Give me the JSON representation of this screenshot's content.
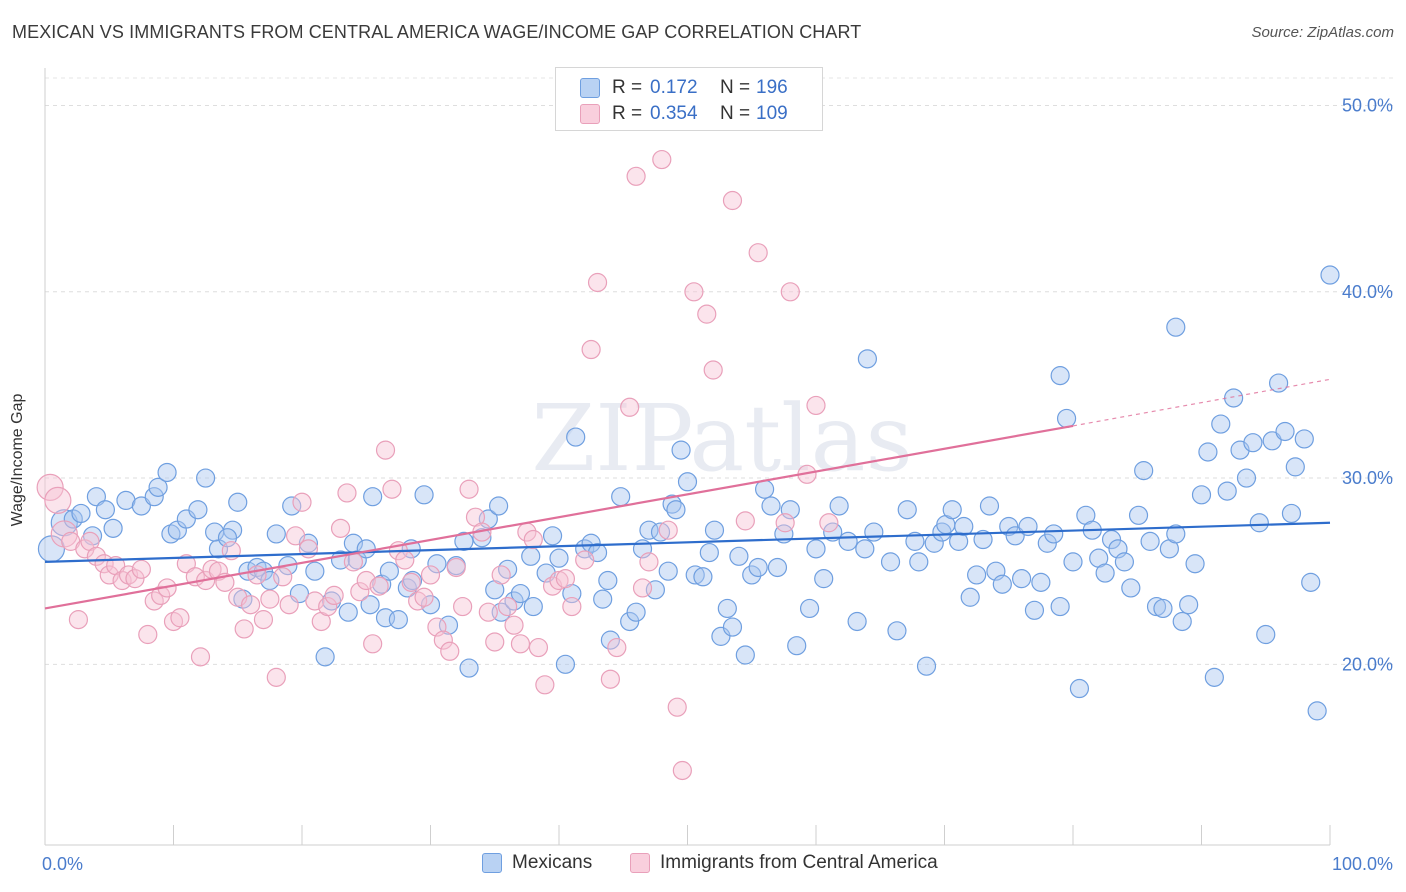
{
  "chart_data": {
    "type": "scatter",
    "title": "MEXICAN VS IMMIGRANTS FROM CENTRAL AMERICA WAGE/INCOME GAP CORRELATION CHART",
    "source": "Source: ZipAtlas.com",
    "xlabel": "",
    "ylabel": "Wage/Income Gap",
    "x_range": [
      0,
      100
    ],
    "y_range": [
      10.3,
      51.8
    ],
    "x_tick_labels": [
      "0.0%",
      "100.0%"
    ],
    "y_ticks": [
      20,
      30,
      40,
      50
    ],
    "y_tick_labels": [
      "20.0%",
      "30.0%",
      "40.0%",
      "50.0%"
    ],
    "grid": true,
    "watermark": "ZIPatlas",
    "legend": [
      {
        "label": "R =",
        "r": "0.172",
        "n_label": "N =",
        "n": "196"
      },
      {
        "label": "R =",
        "r": "0.354",
        "n_label": "N =",
        "n": "109"
      }
    ],
    "series": [
      {
        "name": "Mexicans",
        "color": "#6f9fe0",
        "fill": "#a9c6ef",
        "line_color": "#2e6dcc",
        "trend": {
          "x": [
            0,
            100
          ],
          "y": [
            25.5,
            27.6
          ]
        },
        "points": [
          [
            0.5,
            26.2
          ],
          [
            1.5,
            27.6
          ],
          [
            2.2,
            27.8
          ],
          [
            2.8,
            28.1
          ],
          [
            4,
            29
          ],
          [
            4.7,
            28.3
          ],
          [
            3.7,
            26.9
          ],
          [
            5.3,
            27.3
          ],
          [
            6.3,
            28.8
          ],
          [
            7.5,
            28.5
          ],
          [
            8.5,
            29
          ],
          [
            8.8,
            29.5
          ],
          [
            9.5,
            30.3
          ],
          [
            9.8,
            27
          ],
          [
            10.3,
            27.2
          ],
          [
            11,
            27.8
          ],
          [
            11.9,
            28.3
          ],
          [
            12.5,
            30
          ],
          [
            13.5,
            26.2
          ],
          [
            13.2,
            27.1
          ],
          [
            14.6,
            27.2
          ],
          [
            14.2,
            26.8
          ],
          [
            15,
            28.7
          ],
          [
            15.4,
            23.5
          ],
          [
            15.8,
            25
          ],
          [
            16.5,
            25.2
          ],
          [
            17,
            25
          ],
          [
            17.5,
            24.5
          ],
          [
            18,
            27
          ],
          [
            18.9,
            25.3
          ],
          [
            19.2,
            28.5
          ],
          [
            19.8,
            23.8
          ],
          [
            20.5,
            26.5
          ],
          [
            21,
            25
          ],
          [
            21.8,
            20.4
          ],
          [
            22.3,
            23.4
          ],
          [
            23,
            25.6
          ],
          [
            23.6,
            22.8
          ],
          [
            24,
            26.5
          ],
          [
            24.3,
            25.6
          ],
          [
            25,
            26.2
          ],
          [
            25.3,
            23.2
          ],
          [
            25.5,
            29
          ],
          [
            26.2,
            24.3
          ],
          [
            26.5,
            22.5
          ],
          [
            26.8,
            25
          ],
          [
            27.5,
            22.4
          ],
          [
            28.2,
            24.1
          ],
          [
            28.5,
            26.2
          ],
          [
            28.6,
            24.5
          ],
          [
            29.5,
            29.1
          ],
          [
            30,
            23.2
          ],
          [
            30.5,
            25.4
          ],
          [
            31.4,
            22.1
          ],
          [
            32,
            25.3
          ],
          [
            32.6,
            26.6
          ],
          [
            33,
            19.8
          ],
          [
            34,
            26.8
          ],
          [
            34.5,
            27.8
          ],
          [
            35,
            24
          ],
          [
            35.3,
            28.5
          ],
          [
            35.5,
            22.8
          ],
          [
            36,
            25.1
          ],
          [
            36.5,
            23.4
          ],
          [
            37,
            23.8
          ],
          [
            37.8,
            25.8
          ],
          [
            38,
            23.1
          ],
          [
            39,
            24.9
          ],
          [
            39.5,
            26.9
          ],
          [
            40,
            25.7
          ],
          [
            40.5,
            20
          ],
          [
            41,
            23.8
          ],
          [
            41.3,
            32.2
          ],
          [
            42,
            26.2
          ],
          [
            42.5,
            26.5
          ],
          [
            43,
            26
          ],
          [
            43.4,
            23.5
          ],
          [
            43.8,
            24.5
          ],
          [
            44,
            21.3
          ],
          [
            44.8,
            29
          ],
          [
            45.5,
            22.3
          ],
          [
            46,
            22.8
          ],
          [
            46.5,
            26.2
          ],
          [
            47,
            27.2
          ],
          [
            47.5,
            24
          ],
          [
            47.9,
            27.1
          ],
          [
            48.5,
            25
          ],
          [
            48.8,
            28.6
          ],
          [
            49.1,
            28.3
          ],
          [
            49.5,
            31.5
          ],
          [
            50,
            29.8
          ],
          [
            50.6,
            24.8
          ],
          [
            51.2,
            24.7
          ],
          [
            51.7,
            26
          ],
          [
            52.1,
            27.2
          ],
          [
            52.6,
            21.5
          ],
          [
            53.1,
            23
          ],
          [
            53.5,
            22
          ],
          [
            54,
            25.8
          ],
          [
            54.5,
            20.5
          ],
          [
            55,
            24.8
          ],
          [
            55.5,
            25.2
          ],
          [
            56,
            29.4
          ],
          [
            56.5,
            28.5
          ],
          [
            57,
            25.2
          ],
          [
            57.5,
            27
          ],
          [
            58,
            28.3
          ],
          [
            58.5,
            21
          ],
          [
            59.5,
            23
          ],
          [
            60,
            26.2
          ],
          [
            60.6,
            24.6
          ],
          [
            61.3,
            27.1
          ],
          [
            61.8,
            28.5
          ],
          [
            62.5,
            26.6
          ],
          [
            63.2,
            22.3
          ],
          [
            63.8,
            26.2
          ],
          [
            64.5,
            27.1
          ],
          [
            65.8,
            25.5
          ],
          [
            66.3,
            21.8
          ],
          [
            67.1,
            28.3
          ],
          [
            67.7,
            26.6
          ],
          [
            68,
            25.5
          ],
          [
            68.6,
            19.9
          ],
          [
            69.2,
            26.5
          ],
          [
            69.8,
            27.1
          ],
          [
            70.1,
            27.5
          ],
          [
            70.6,
            28.3
          ],
          [
            71.1,
            26.6
          ],
          [
            71.5,
            27.4
          ],
          [
            72,
            23.6
          ],
          [
            72.5,
            24.8
          ],
          [
            73,
            26.7
          ],
          [
            73.5,
            28.5
          ],
          [
            74,
            25
          ],
          [
            74.5,
            24.3
          ],
          [
            75,
            27.4
          ],
          [
            75.5,
            26.9
          ],
          [
            76,
            24.6
          ],
          [
            76.5,
            27.4
          ],
          [
            77,
            22.9
          ],
          [
            77.5,
            24.4
          ],
          [
            78,
            26.5
          ],
          [
            78.5,
            27
          ],
          [
            79,
            23.1
          ],
          [
            79.5,
            33.2
          ],
          [
            80,
            25.5
          ],
          [
            80.5,
            18.7
          ],
          [
            81,
            28
          ],
          [
            81.5,
            27.2
          ],
          [
            82,
            25.7
          ],
          [
            82.5,
            24.9
          ],
          [
            83,
            26.7
          ],
          [
            83.5,
            26.2
          ],
          [
            84,
            25.5
          ],
          [
            84.5,
            24.1
          ],
          [
            85.1,
            28
          ],
          [
            85.5,
            30.4
          ],
          [
            86,
            26.6
          ],
          [
            86.5,
            23.1
          ],
          [
            87,
            23
          ],
          [
            87.5,
            26.2
          ],
          [
            88,
            27
          ],
          [
            88.5,
            22.3
          ],
          [
            89,
            23.2
          ],
          [
            89.5,
            25.4
          ],
          [
            90,
            29.1
          ],
          [
            90.5,
            31.4
          ],
          [
            91,
            19.3
          ],
          [
            91.5,
            32.9
          ],
          [
            92,
            29.3
          ],
          [
            92.5,
            34.3
          ],
          [
            93,
            31.5
          ],
          [
            93.5,
            30
          ],
          [
            94,
            31.9
          ],
          [
            95,
            21.6
          ],
          [
            95.5,
            32
          ],
          [
            96,
            35.1
          ],
          [
            96.5,
            32.5
          ],
          [
            97.3,
            30.6
          ],
          [
            98.5,
            24.4
          ],
          [
            99,
            17.5
          ],
          [
            100,
            40.9
          ],
          [
            98,
            32.1
          ],
          [
            97,
            28.1
          ],
          [
            88,
            38.1
          ],
          [
            79,
            35.5
          ],
          [
            64,
            36.4
          ],
          [
            94.5,
            27.6
          ]
        ]
      },
      {
        "name": "Immigrants from Central America",
        "color": "#e9a0ba",
        "fill": "#f7c4d5",
        "line_color": "#e0709a",
        "trend": {
          "x": [
            0,
            80
          ],
          "y": [
            23,
            32.8
          ]
        },
        "trend_dashed": {
          "x": [
            80,
            100
          ],
          "y": [
            32.8,
            35.3
          ]
        },
        "points": [
          [
            0.4,
            29.5
          ],
          [
            1,
            28.8
          ],
          [
            1.5,
            27
          ],
          [
            2,
            26.6
          ],
          [
            2.6,
            22.4
          ],
          [
            3.1,
            26.2
          ],
          [
            3.5,
            26.6
          ],
          [
            4,
            25.8
          ],
          [
            4.6,
            25.4
          ],
          [
            5,
            24.8
          ],
          [
            5.5,
            25.3
          ],
          [
            6,
            24.5
          ],
          [
            6.5,
            24.8
          ],
          [
            7,
            24.6
          ],
          [
            7.5,
            25.1
          ],
          [
            8,
            21.6
          ],
          [
            8.5,
            23.4
          ],
          [
            9,
            23.7
          ],
          [
            9.5,
            24.1
          ],
          [
            10,
            22.3
          ],
          [
            10.5,
            22.5
          ],
          [
            11,
            25.4
          ],
          [
            11.7,
            24.7
          ],
          [
            12.1,
            20.4
          ],
          [
            12.5,
            24.5
          ],
          [
            13,
            25.1
          ],
          [
            13.5,
            25
          ],
          [
            14,
            24.4
          ],
          [
            14.5,
            26.1
          ],
          [
            15,
            23.6
          ],
          [
            15.5,
            21.9
          ],
          [
            16,
            23.2
          ],
          [
            16.5,
            24.8
          ],
          [
            17,
            22.4
          ],
          [
            17.5,
            23.5
          ],
          [
            18,
            19.3
          ],
          [
            18.5,
            24.7
          ],
          [
            19,
            23.2
          ],
          [
            19.5,
            26.9
          ],
          [
            20,
            28.7
          ],
          [
            20.5,
            26.2
          ],
          [
            21,
            23.4
          ],
          [
            21.5,
            22.3
          ],
          [
            22,
            23.1
          ],
          [
            22.5,
            23.7
          ],
          [
            23,
            27.3
          ],
          [
            23.5,
            29.2
          ],
          [
            24,
            25.5
          ],
          [
            24.5,
            23.9
          ],
          [
            25,
            24.5
          ],
          [
            25.5,
            21.1
          ],
          [
            26,
            24.2
          ],
          [
            26.5,
            31.5
          ],
          [
            27,
            29.4
          ],
          [
            27.5,
            26.1
          ],
          [
            28,
            25.6
          ],
          [
            28.5,
            24.4
          ],
          [
            29,
            23.4
          ],
          [
            29.5,
            23.6
          ],
          [
            30,
            24.8
          ],
          [
            30.5,
            22
          ],
          [
            31,
            21.3
          ],
          [
            31.5,
            20.7
          ],
          [
            32,
            25.2
          ],
          [
            32.5,
            23.1
          ],
          [
            33,
            29.4
          ],
          [
            33.5,
            27.9
          ],
          [
            34,
            27.1
          ],
          [
            34.5,
            22.8
          ],
          [
            35,
            21.2
          ],
          [
            35.5,
            24.8
          ],
          [
            36,
            23.1
          ],
          [
            36.5,
            22.1
          ],
          [
            37,
            21.1
          ],
          [
            37.5,
            27.1
          ],
          [
            38,
            26.7
          ],
          [
            38.4,
            20.9
          ],
          [
            38.9,
            18.9
          ],
          [
            39.5,
            24.2
          ],
          [
            40,
            24.5
          ],
          [
            40.5,
            24.6
          ],
          [
            41,
            23.1
          ],
          [
            42,
            25.6
          ],
          [
            42.5,
            36.9
          ],
          [
            43,
            40.5
          ],
          [
            44,
            19.2
          ],
          [
            44.5,
            20.9
          ],
          [
            45.5,
            33.8
          ],
          [
            46,
            46.2
          ],
          [
            46.5,
            24.1
          ],
          [
            47,
            25.5
          ],
          [
            48,
            47.1
          ],
          [
            48.5,
            27.2
          ],
          [
            49.2,
            17.7
          ],
          [
            49.6,
            14.3
          ],
          [
            50.5,
            40
          ],
          [
            51.5,
            38.8
          ],
          [
            52,
            35.8
          ],
          [
            53.5,
            44.9
          ],
          [
            54.5,
            27.7
          ],
          [
            55.5,
            42.1
          ],
          [
            57.6,
            27.6
          ],
          [
            58,
            40
          ],
          [
            59.3,
            30.2
          ],
          [
            60,
            33.9
          ],
          [
            61,
            27.6
          ]
        ]
      }
    ]
  },
  "bottom_legend": {
    "series_a": "Mexicans",
    "series_b": "Immigrants from Central America"
  }
}
